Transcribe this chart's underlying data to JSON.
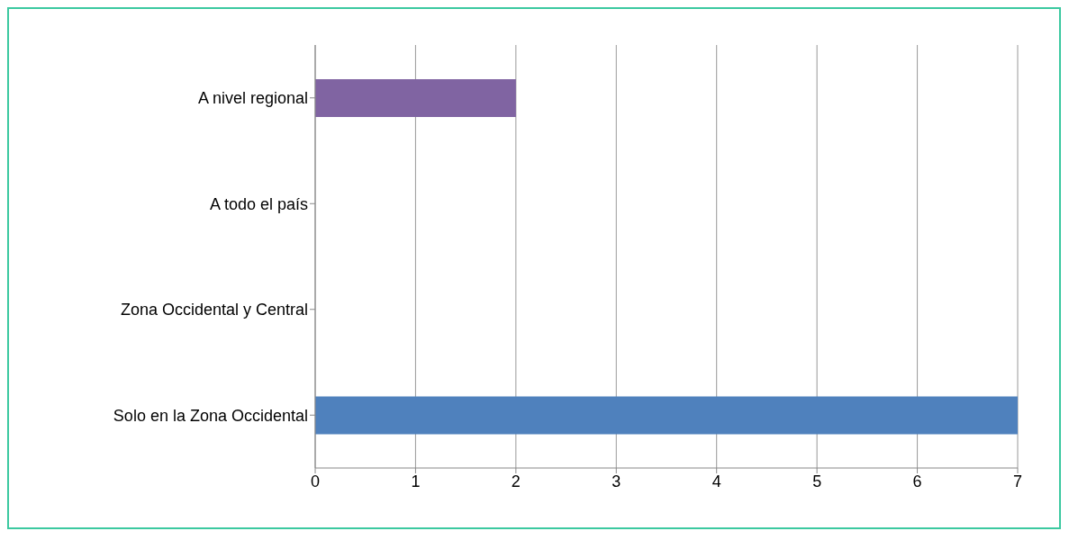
{
  "chart_data": {
    "type": "bar",
    "orientation": "horizontal",
    "categories": [
      "A nivel regional",
      "A todo el país",
      "Zona Occidental y Central",
      "Solo en la Zona Occidental"
    ],
    "values": [
      2,
      0,
      0,
      7
    ],
    "colors": [
      "#8064a2",
      "#77933c",
      "#953735",
      "#4f81bd"
    ],
    "xlim": [
      0,
      7
    ],
    "xticks": [
      0,
      1,
      2,
      3,
      4,
      5,
      6,
      7
    ],
    "grid": "x"
  }
}
